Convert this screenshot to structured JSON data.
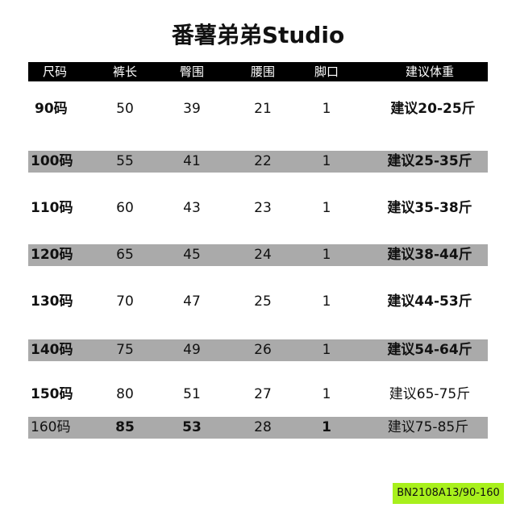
{
  "title": "番薯弟弟Studio",
  "table": {
    "headers": [
      "尺码",
      "裤长",
      "臀围",
      "腰围",
      "脚口",
      "建议体重"
    ],
    "rows": [
      [
        "90码",
        "50",
        "39",
        "21",
        "1",
        "建议20-25斤"
      ],
      [
        "100码",
        "55",
        "41",
        "22",
        "1",
        "建议25-35斤"
      ],
      [
        "110码",
        "60",
        "43",
        "23",
        "1",
        "建议35-38斤"
      ],
      [
        "120码",
        "65",
        "45",
        "24",
        "1",
        "建议38-44斤"
      ],
      [
        "130码",
        "70",
        "47",
        "25",
        "1",
        "建议44-53斤"
      ],
      [
        "140码",
        "75",
        "49",
        "26",
        "1",
        "建议54-64斤"
      ],
      [
        "150码",
        "80",
        "51",
        "27",
        "1",
        "建议65-75斤"
      ],
      [
        "160码",
        "85",
        "53",
        "28",
        "1",
        "建议75-85斤"
      ]
    ]
  },
  "tag": "BN2108A13/90-160",
  "colors": {
    "header_bg": "#000000",
    "stripe": "#aaaaaa",
    "tag_bg": "#a8f01c"
  }
}
